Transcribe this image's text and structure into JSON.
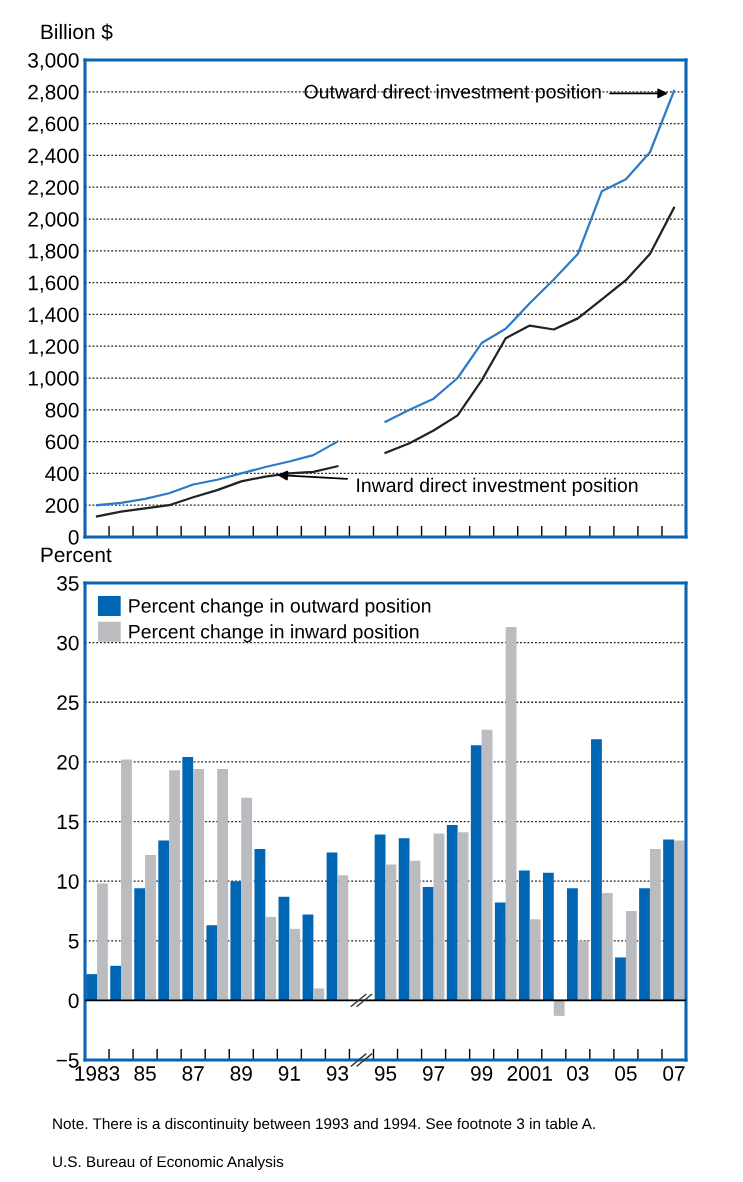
{
  "chart_data": [
    {
      "type": "line",
      "ylabel": "Billion $",
      "categories": [
        null,
        null,
        null,
        null,
        null,
        null,
        null,
        null,
        null,
        null,
        null,
        null,
        null,
        null,
        null,
        null,
        null,
        null,
        null,
        null,
        null,
        null,
        null,
        null,
        null
      ],
      "series": [
        {
          "color": "#2b7bc8",
          "values": [
            200,
            215,
            240,
            275,
            330,
            360,
            400,
            440,
            475,
            515,
            600,
            null,
            725,
            800,
            870,
            1000,
            1220,
            1310,
            1470,
            1620,
            1780,
            2175,
            2250,
            2420,
            2805
          ]
        },
        {
          "color": "#222222",
          "values": [
            130,
            160,
            180,
            200,
            250,
            295,
            350,
            380,
            400,
            410,
            445,
            null,
            530,
            590,
            670,
            765,
            985,
            1250,
            1330,
            1305,
            1375,
            1495,
            1615,
            1780,
            2070
          ]
        }
      ],
      "ylim": [
        0,
        3000
      ],
      "yticks": [
        0,
        {
          "value": 200,
          "label": "200"
        },
        {
          "value": 400,
          "label": "400"
        },
        {
          "value": 600,
          "label": "600"
        },
        {
          "value": 800,
          "label": "800"
        },
        {
          "value": 1000,
          "label": "1,000"
        },
        {
          "value": 1200,
          "label": "1,200"
        },
        {
          "value": 1400,
          "label": "1,400"
        },
        {
          "value": 1600,
          "label": "1,600"
        },
        {
          "value": 1800,
          "label": "1,800"
        },
        {
          "value": 2000,
          "label": "2,000"
        },
        {
          "value": 2200,
          "label": "2,200"
        },
        {
          "value": 2400,
          "label": "2,400"
        },
        {
          "value": 2600,
          "label": "2,600"
        },
        {
          "value": 2800,
          "label": "2,800"
        },
        {
          "value": 3000,
          "label": "3,000"
        }
      ],
      "grid": "y",
      "tick_labels": "y",
      "marker": "none",
      "line_style": "solid",
      "annotations": [
        "Outward direct investment position",
        "Inward direct investment position"
      ]
    },
    {
      "type": "bar",
      "ylabel": "Percent",
      "categories": [
        "1983",
        null,
        "85",
        null,
        "87",
        null,
        "89",
        null,
        "91",
        null,
        "93",
        null,
        "95",
        null,
        "97",
        null,
        "99",
        null,
        "2001",
        null,
        "03",
        null,
        "05",
        null,
        "07"
      ],
      "series": [
        {
          "name": "Percent change in outward position",
          "color": "#0066b3",
          "values": [
            2.2,
            2.9,
            9.4,
            13.4,
            20.4,
            6.3,
            10.0,
            12.7,
            8.7,
            7.2,
            12.4,
            null,
            13.9,
            13.6,
            9.5,
            14.7,
            21.4,
            8.2,
            10.9,
            10.7,
            9.4,
            21.9,
            3.6,
            9.4,
            13.5
          ]
        },
        {
          "name": "Percent change in inward position",
          "color": "#bbbcc0",
          "values": [
            9.8,
            20.2,
            12.2,
            19.3,
            19.4,
            19.4,
            17.0,
            7.0,
            6.0,
            1.0,
            10.5,
            null,
            11.4,
            11.7,
            14.0,
            14.1,
            22.7,
            31.3,
            6.8,
            -1.3,
            5.0,
            9.0,
            7.5,
            12.7,
            13.4
          ]
        }
      ],
      "ylim": [
        -5,
        35
      ],
      "yticks": [
        {
          "value": -5,
          "label": "−5"
        },
        0,
        5,
        10,
        15,
        20,
        25,
        30,
        35
      ],
      "ref_lines": [
        {
          "axis": "y",
          "value": 0,
          "color": "#000000"
        }
      ],
      "grid": "y",
      "legend": "top left",
      "annotations": [
        "Note. There is a discontinuity between 1993 and 1994. See footnote 3 in table A.",
        "U.S. Bureau of Economic Analysis"
      ]
    }
  ]
}
